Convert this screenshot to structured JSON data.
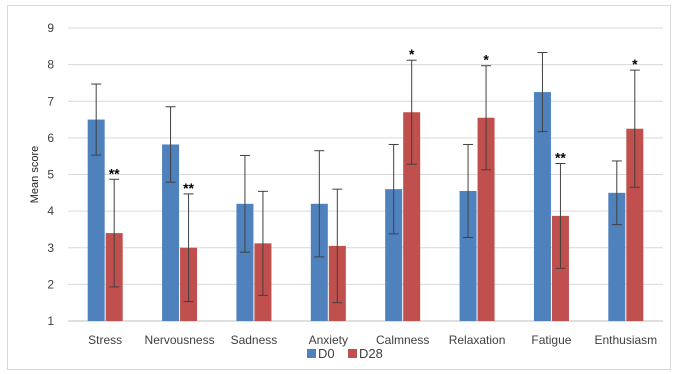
{
  "chart_data": {
    "type": "bar",
    "title": "",
    "xlabel": "",
    "ylabel": "Mean score",
    "ylim": [
      1,
      9
    ],
    "yticks": [
      1,
      2,
      3,
      4,
      5,
      6,
      7,
      8,
      9
    ],
    "grid": true,
    "legend_position": "bottom",
    "categories": [
      "Stress",
      "Nervousness",
      "Sadness",
      "Anxiety",
      "Calmness",
      "Relaxation",
      "Fatigue",
      "Enthusiasm"
    ],
    "series": [
      {
        "name": "D0",
        "color": "#4f81bd",
        "values": [
          6.5,
          5.82,
          4.2,
          4.2,
          4.6,
          4.55,
          7.25,
          4.5
        ],
        "error": [
          0.97,
          1.03,
          1.32,
          1.45,
          1.22,
          1.27,
          1.08,
          0.87
        ]
      },
      {
        "name": "D28",
        "color": "#c0504d",
        "values": [
          3.4,
          3.0,
          3.12,
          3.05,
          6.7,
          6.55,
          3.87,
          6.25
        ],
        "error": [
          1.47,
          1.47,
          1.42,
          1.55,
          1.42,
          1.42,
          1.43,
          1.6
        ]
      }
    ],
    "annotations": [
      {
        "category": "Stress",
        "series": "D28",
        "text": "**"
      },
      {
        "category": "Nervousness",
        "series": "D28",
        "text": "**"
      },
      {
        "category": "Calmness",
        "series": "D28",
        "text": "*"
      },
      {
        "category": "Relaxation",
        "series": "D28",
        "text": "*"
      },
      {
        "category": "Fatigue",
        "series": "D28",
        "text": "**"
      },
      {
        "category": "Enthusiasm",
        "series": "D28",
        "text": "*"
      }
    ]
  }
}
